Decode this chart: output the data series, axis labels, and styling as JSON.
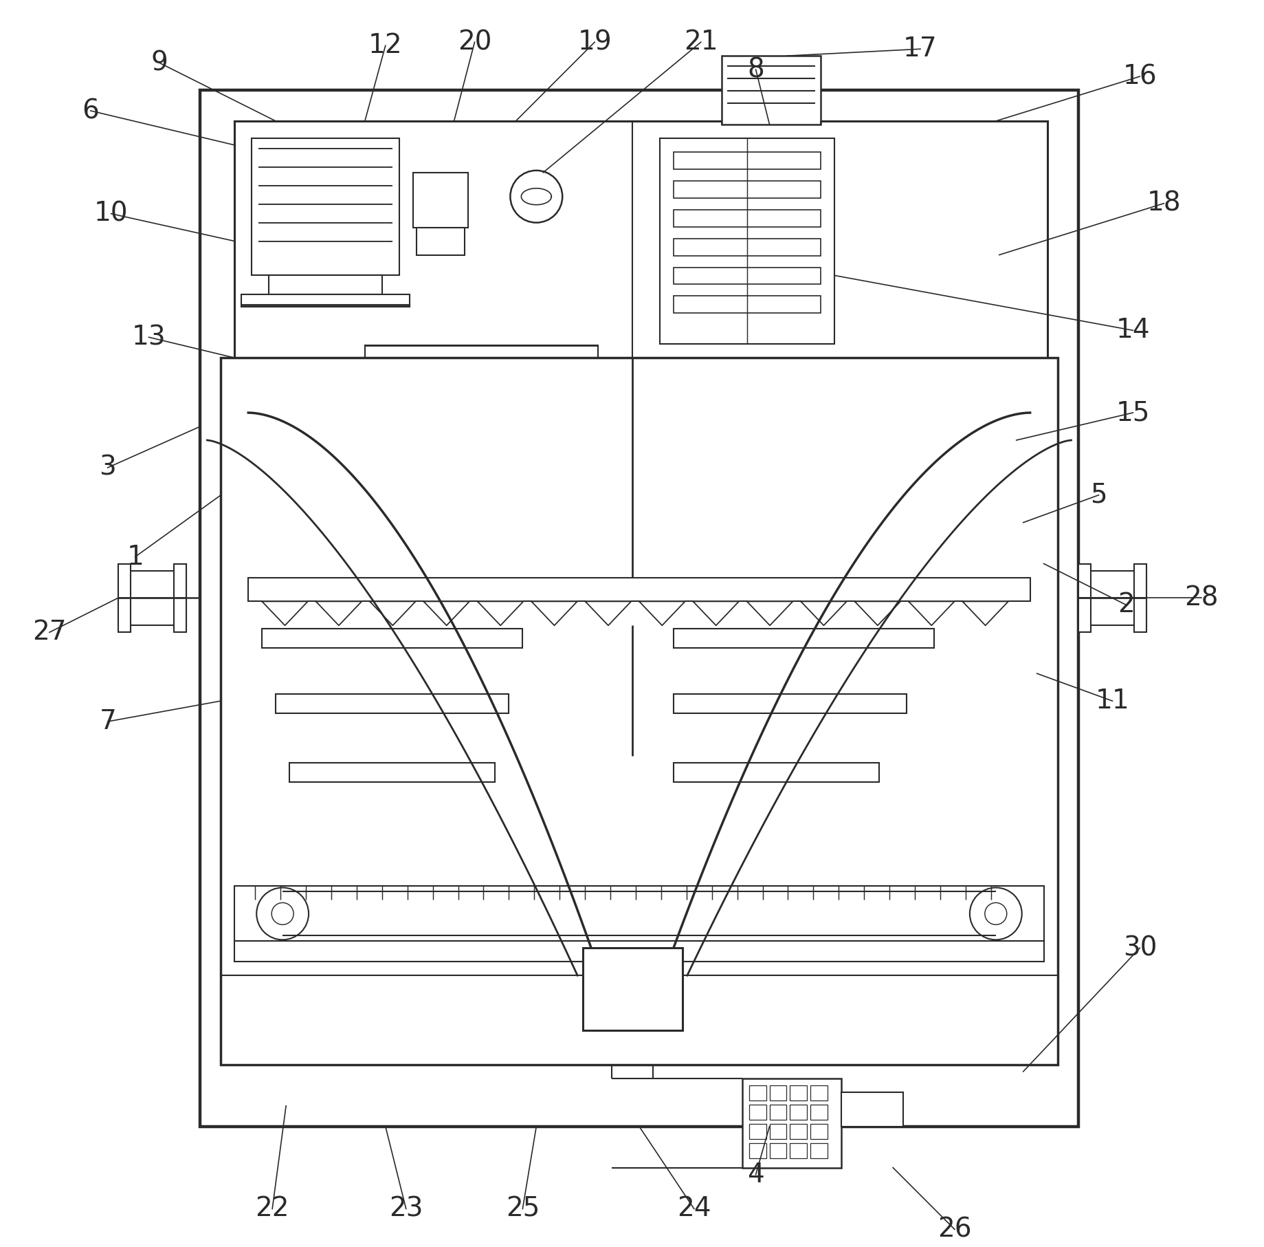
{
  "bg_color": "#ffffff",
  "line_color": "#2a2a2a",
  "lw": 2.2,
  "thin_lw": 1.5,
  "fig_width": 18.39,
  "fig_height": 18.13
}
